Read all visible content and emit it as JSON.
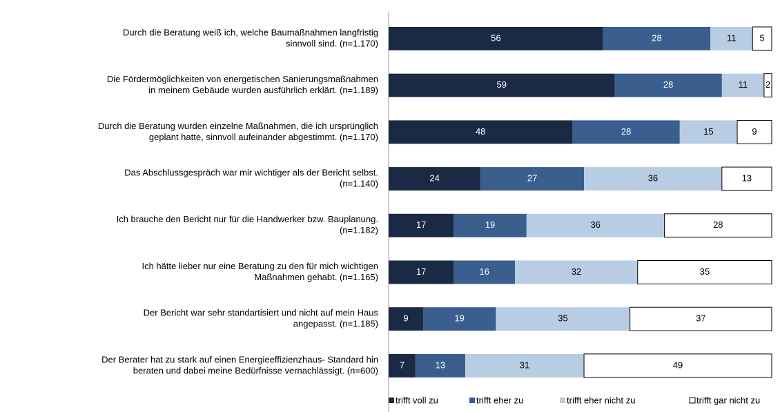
{
  "chart_data": {
    "type": "stacked-bar-horizontal",
    "categories": [
      [
        "Durch die Beratung weiß ich, welche Baumaßnahmen langfristig",
        "sinnvoll sind. (n=1.170)"
      ],
      [
        "Die Fördermöglichkeiten von energetischen Sanierungsmaßnahmen",
        "in meinem Gebäude wurden ausführlich erklärt. (n=1.189)"
      ],
      [
        "Durch die Beratung wurden einzelne Maßnahmen, die ich ursprünglich",
        "geplant hatte, sinnvoll aufeinander abgestimmt. (n=1.170)"
      ],
      [
        "Das Abschlussgespräch war mir wichtiger als der Bericht selbst.",
        "(n=1.140)"
      ],
      [
        "Ich brauche den Bericht nur für die Handwerker bzw. Bauplanung.",
        "(n=1.182)"
      ],
      [
        "Ich hätte lieber nur eine Beratung zu den für mich wichtigen",
        "Maßnahmen gehabt. (n=1.165)"
      ],
      [
        "Der Bericht war sehr standartisiert und nicht auf mein Haus",
        "angepasst. (n=1.185)"
      ],
      [
        "Der Berater hat zu stark auf einen Energieeffizienzhaus- Standard hin",
        "beraten und dabei meine Bedürfnisse vernachlässigt. (n=600)"
      ]
    ],
    "series": [
      {
        "name": "trifft voll zu",
        "color": "#1b2a44",
        "label_color": "#ffffff",
        "values": [
          56,
          59,
          48,
          24,
          17,
          17,
          9,
          7
        ]
      },
      {
        "name": "trifft eher zu",
        "color": "#3a5f8f",
        "label_color": "#ffffff",
        "values": [
          28,
          28,
          28,
          27,
          19,
          16,
          19,
          13
        ]
      },
      {
        "name": "trifft eher nicht zu",
        "color": "#b8cce4",
        "label_color": "#000000",
        "values": [
          11,
          11,
          15,
          36,
          36,
          32,
          35,
          31
        ]
      },
      {
        "name": "trifft gar nicht zu",
        "color": "#ffffff",
        "label_color": "#000000",
        "values": [
          5,
          2,
          9,
          13,
          28,
          35,
          37,
          49
        ]
      }
    ],
    "legend": "bottom"
  }
}
